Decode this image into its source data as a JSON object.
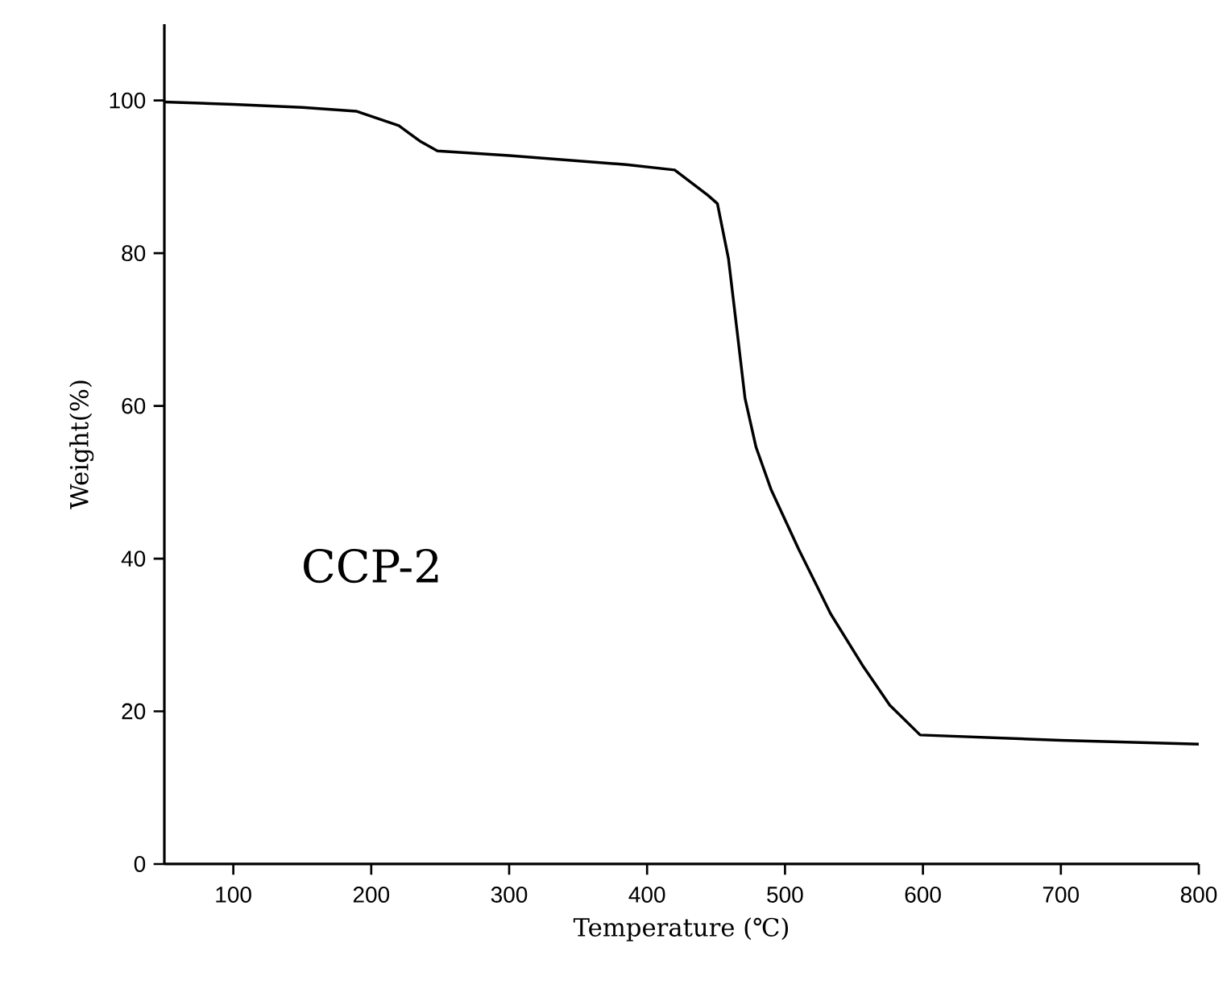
{
  "chart_data": {
    "type": "line",
    "xlabel": "Temperature (℃)",
    "ylabel": "Weight(%)",
    "annotations": [
      "CCP-2"
    ],
    "x": [
      50,
      100,
      150,
      189,
      220,
      236,
      248,
      300,
      385,
      420,
      444,
      451,
      459,
      465,
      471,
      479,
      490,
      510,
      533,
      557,
      576,
      598,
      700,
      800
    ],
    "values": [
      99.8,
      99.5,
      99.1,
      98.6,
      96.7,
      94.6,
      93.4,
      92.8,
      91.6,
      90.9,
      87.6,
      86.5,
      79.3,
      70.2,
      61,
      54.6,
      49,
      41.2,
      32.8,
      25.8,
      20.8,
      16.9,
      16.2,
      15.7
    ],
    "color": "#000000",
    "xlim": [
      50,
      800
    ],
    "ylim": [
      0,
      110
    ],
    "xticks": [
      100,
      200,
      300,
      400,
      500,
      600,
      700,
      800
    ],
    "yticks": [
      0,
      20,
      40,
      60,
      80,
      100
    ]
  }
}
